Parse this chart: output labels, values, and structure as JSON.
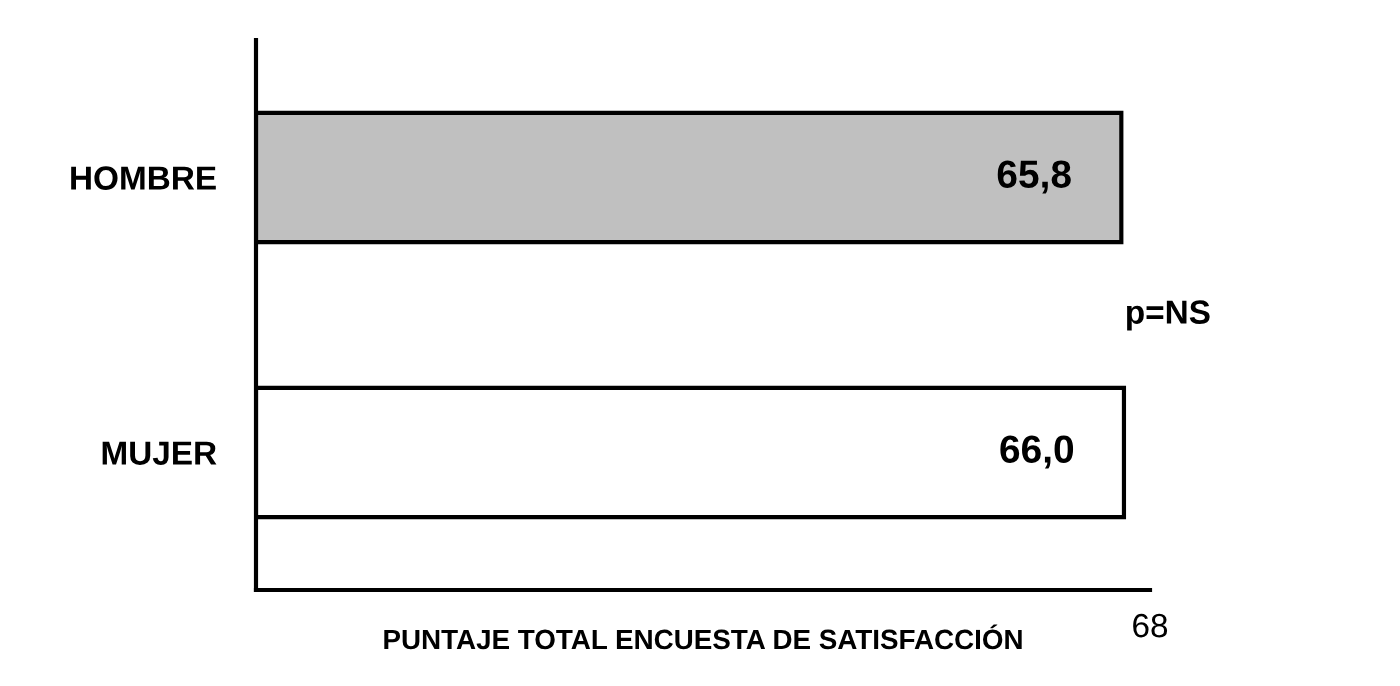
{
  "chart_data": {
    "type": "bar",
    "orientation": "horizontal",
    "categories": [
      "HOMBRE",
      "MUJER"
    ],
    "values": [
      65.8,
      66.0
    ],
    "value_labels": [
      "65,8",
      "66,0"
    ],
    "colors": [
      "#c0c0c0",
      "#ffffff"
    ],
    "xlabel": "PUNTAJE TOTAL ENCUESTA DE SATISFACCIÓN",
    "annotations": [
      "p=NS",
      "68"
    ],
    "grid": false,
    "legend": false
  }
}
